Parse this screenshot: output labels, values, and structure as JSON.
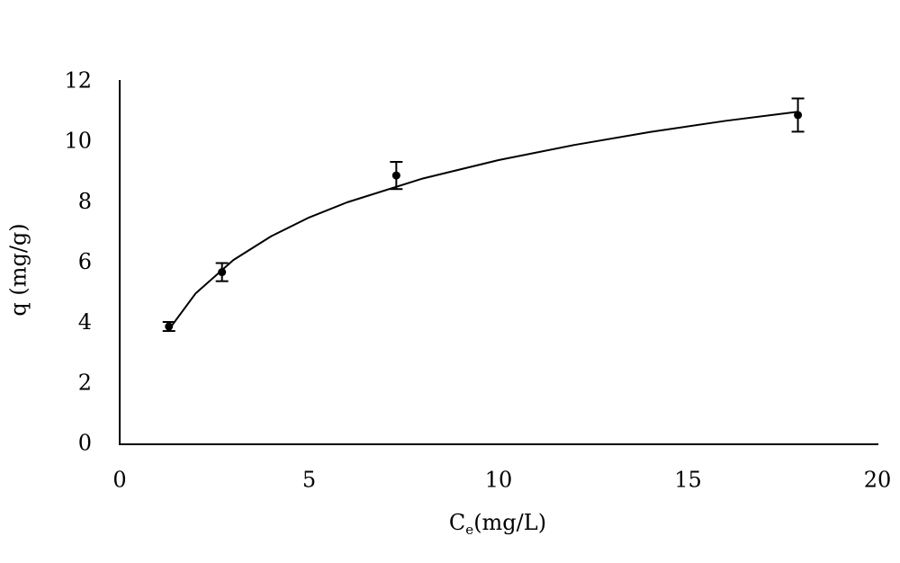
{
  "chart_data": {
    "type": "scatter",
    "x_label": [
      "C",
      "e",
      "(mg/L)"
    ],
    "y_label": "q (mg/g)",
    "xlim": [
      0,
      20
    ],
    "xticks": [
      0,
      5,
      10,
      15,
      20
    ],
    "ylim": [
      0,
      12
    ],
    "yticks": [
      0,
      2,
      4,
      6,
      8,
      10,
      12
    ],
    "grid": false,
    "series": [
      {
        "x": [
          1.3,
          2.7,
          7.3,
          17.9
        ],
        "values": [
          3.9,
          5.7,
          8.9,
          10.9
        ],
        "errors": [
          0.15,
          0.3,
          0.45,
          0.55
        ],
        "color": "#000000"
      }
    ],
    "curve": {
      "x": [
        1.3,
        2,
        3,
        4,
        5,
        6,
        8,
        10,
        12,
        14,
        16,
        17.9
      ],
      "values": [
        3.8,
        4.99,
        6.1,
        6.89,
        7.51,
        8.01,
        8.8,
        9.41,
        9.91,
        10.34,
        10.71,
        11.01
      ],
      "color": "#000000"
    }
  }
}
